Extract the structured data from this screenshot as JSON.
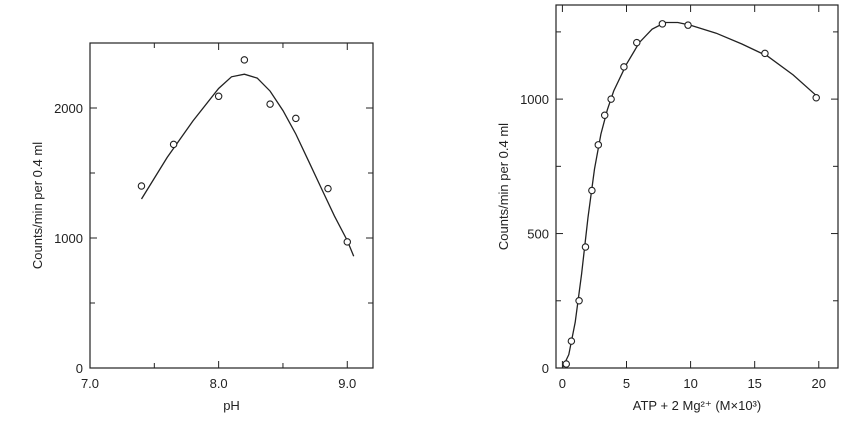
{
  "colors": {
    "ink": "#222222",
    "background": "#ffffff"
  },
  "chart_data": [
    {
      "type": "scatter",
      "xlabel": "pH",
      "ylabel": "Counts/min per 0.4 ml",
      "xlim": [
        7.0,
        9.2
      ],
      "ylim": [
        0,
        2500
      ],
      "x_ticks": [
        7.0,
        8.0,
        9.0
      ],
      "x_tick_labels": [
        "7.0",
        "8.0",
        "9.0"
      ],
      "x_minor_ticks": [
        7.5,
        8.5
      ],
      "y_ticks": [
        0,
        1000,
        2000
      ],
      "y_tick_labels": [
        "0",
        "1000",
        "2000"
      ],
      "y_minor_ticks": [
        500,
        1500
      ],
      "grid": false,
      "series": [
        {
          "points": [
            [
              7.4,
              1400
            ],
            [
              7.65,
              1720
            ],
            [
              8.0,
              2090
            ],
            [
              8.2,
              2370
            ],
            [
              8.4,
              2030
            ],
            [
              8.6,
              1920
            ],
            [
              8.85,
              1380
            ],
            [
              9.0,
              970
            ]
          ],
          "curve": [
            [
              7.4,
              1300
            ],
            [
              7.6,
              1620
            ],
            [
              7.8,
              1900
            ],
            [
              8.0,
              2150
            ],
            [
              8.1,
              2240
            ],
            [
              8.2,
              2260
            ],
            [
              8.3,
              2230
            ],
            [
              8.4,
              2130
            ],
            [
              8.5,
              1980
            ],
            [
              8.6,
              1800
            ],
            [
              8.7,
              1590
            ],
            [
              8.8,
              1380
            ],
            [
              8.9,
              1170
            ],
            [
              9.0,
              980
            ],
            [
              9.05,
              860
            ]
          ]
        }
      ]
    },
    {
      "type": "scatter",
      "xlabel": "ATP + 2 Mg²⁺ (M×10³)",
      "ylabel": "Counts/min per 0.4 ml",
      "xlim": [
        -0.5,
        21.5
      ],
      "ylim": [
        0,
        1350
      ],
      "x_ticks": [
        0,
        5,
        10,
        15,
        20
      ],
      "x_tick_labels": [
        "0",
        "5",
        "10",
        "15",
        "20"
      ],
      "y_ticks": [
        0,
        500,
        1000
      ],
      "y_tick_labels": [
        "0",
        "500",
        "1000"
      ],
      "y_minor_ticks": [
        250,
        750,
        1250
      ],
      "grid": false,
      "series": [
        {
          "points": [
            [
              0.3,
              15
            ],
            [
              0.7,
              100
            ],
            [
              1.3,
              250
            ],
            [
              1.8,
              450
            ],
            [
              2.3,
              660
            ],
            [
              2.8,
              830
            ],
            [
              3.3,
              940
            ],
            [
              3.8,
              1000
            ],
            [
              4.8,
              1120
            ],
            [
              5.8,
              1210
            ],
            [
              7.8,
              1280
            ],
            [
              9.8,
              1275
            ],
            [
              15.8,
              1170
            ],
            [
              19.8,
              1005
            ]
          ],
          "curve": [
            [
              0.0,
              0
            ],
            [
              0.5,
              50
            ],
            [
              1.0,
              170
            ],
            [
              1.5,
              350
            ],
            [
              2.0,
              560
            ],
            [
              2.5,
              740
            ],
            [
              3.0,
              870
            ],
            [
              3.5,
              960
            ],
            [
              4.0,
              1030
            ],
            [
              5.0,
              1130
            ],
            [
              6.0,
              1210
            ],
            [
              7.0,
              1260
            ],
            [
              8.0,
              1285
            ],
            [
              9.0,
              1285
            ],
            [
              10.0,
              1275
            ],
            [
              12.0,
              1245
            ],
            [
              14.0,
              1205
            ],
            [
              16.0,
              1160
            ],
            [
              18.0,
              1090
            ],
            [
              20.0,
              1005
            ]
          ]
        }
      ]
    }
  ]
}
